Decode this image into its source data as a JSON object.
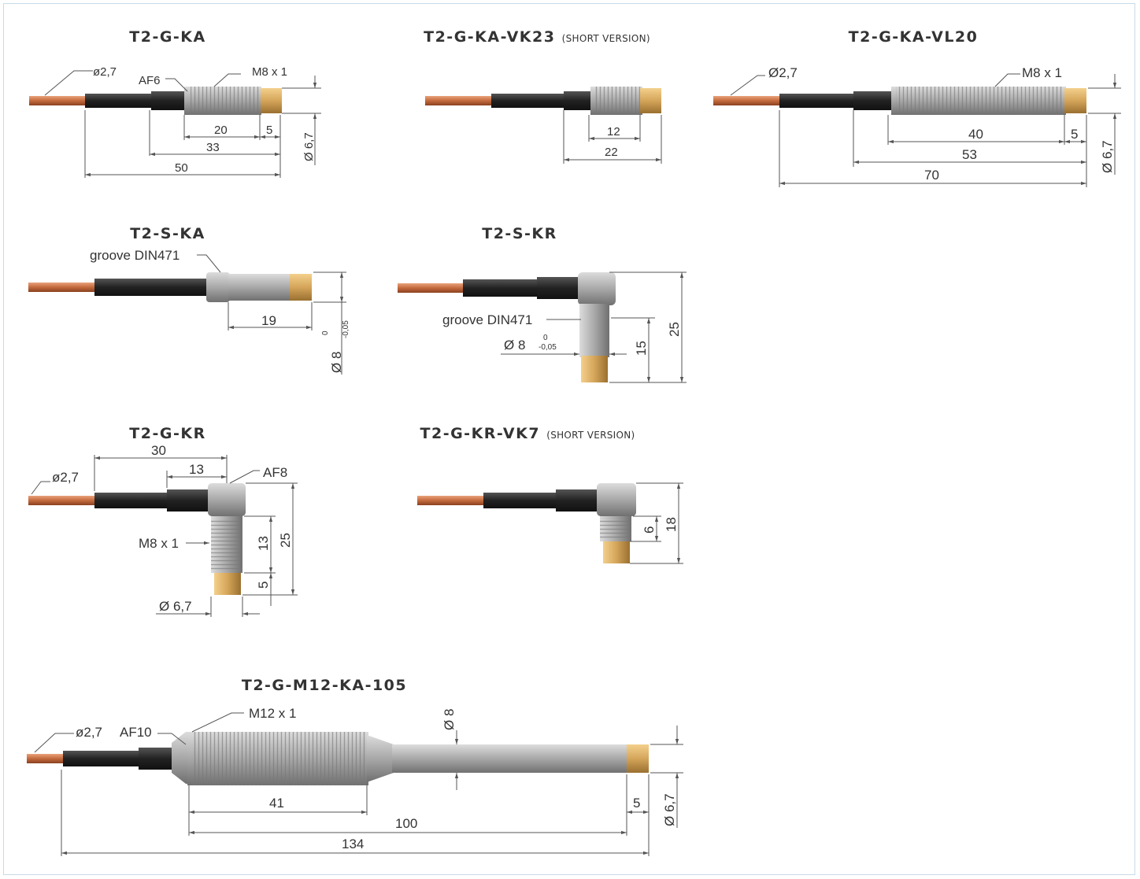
{
  "colors": {
    "cable_copper": "#c46a3e",
    "sleeve_black": "#222222",
    "thread_grey": "#a8a8a8",
    "tip_brass": "#d4a55a",
    "frame_border": "#c9dbe6"
  },
  "sensors": [
    {
      "title": "T2-G-KA",
      "subtitle": "",
      "labels": {
        "cable": "ø2,7",
        "hex": "AF6",
        "thread": "M8 x 1",
        "d_thread": "20",
        "d_tip": "5",
        "d_mid": "33",
        "d_total": "50",
        "d_dia": "Ø 6,7"
      }
    },
    {
      "title": "T2-G-KA-VK23",
      "subtitle": "(SHORT VERSION)",
      "labels": {
        "d_thread": "12",
        "d_total": "22"
      }
    },
    {
      "title": "T2-G-KA-VL20",
      "subtitle": "",
      "labels": {
        "cable": "Ø2,7",
        "thread": "M8 x 1",
        "d_thread": "40",
        "d_tip": "5",
        "d_mid": "53",
        "d_total": "70",
        "d_dia": "Ø 6,7"
      }
    },
    {
      "title": "T2-S-KA",
      "subtitle": "",
      "labels": {
        "groove": "groove DIN471",
        "d_len": "19",
        "d_dia": "Ø 8",
        "tol_up": "0",
        "tol_low": "-0,05"
      }
    },
    {
      "title": "T2-S-KR",
      "subtitle": "",
      "labels": {
        "groove": "groove DIN471",
        "d_dia": "Ø 8",
        "tol_up": "0",
        "tol_low": "-0,05",
        "d_a": "15",
        "d_b": "25"
      }
    },
    {
      "title": "T2-G-KR",
      "subtitle": "",
      "labels": {
        "cable": "ø2,7",
        "d_30": "30",
        "d_13h": "13",
        "hex": "AF8",
        "thread": "M8 x 1",
        "d_13v": "13",
        "d_25": "25",
        "d_5": "5",
        "d_dia": "Ø 6,7"
      }
    },
    {
      "title": "T2-G-KR-VK7",
      "subtitle": "(SHORT VERSION)",
      "labels": {
        "d_6": "6",
        "d_18": "18"
      }
    },
    {
      "title": "T2-G-M12-KA-105",
      "subtitle": "",
      "labels": {
        "cable": "ø2,7",
        "hex": "AF10",
        "thread": "M12 x 1",
        "d_8": "Ø 8",
        "d_41": "41",
        "d_5": "5",
        "d_100": "100",
        "d_134": "134",
        "d_dia": "Ø 6,7"
      }
    }
  ]
}
